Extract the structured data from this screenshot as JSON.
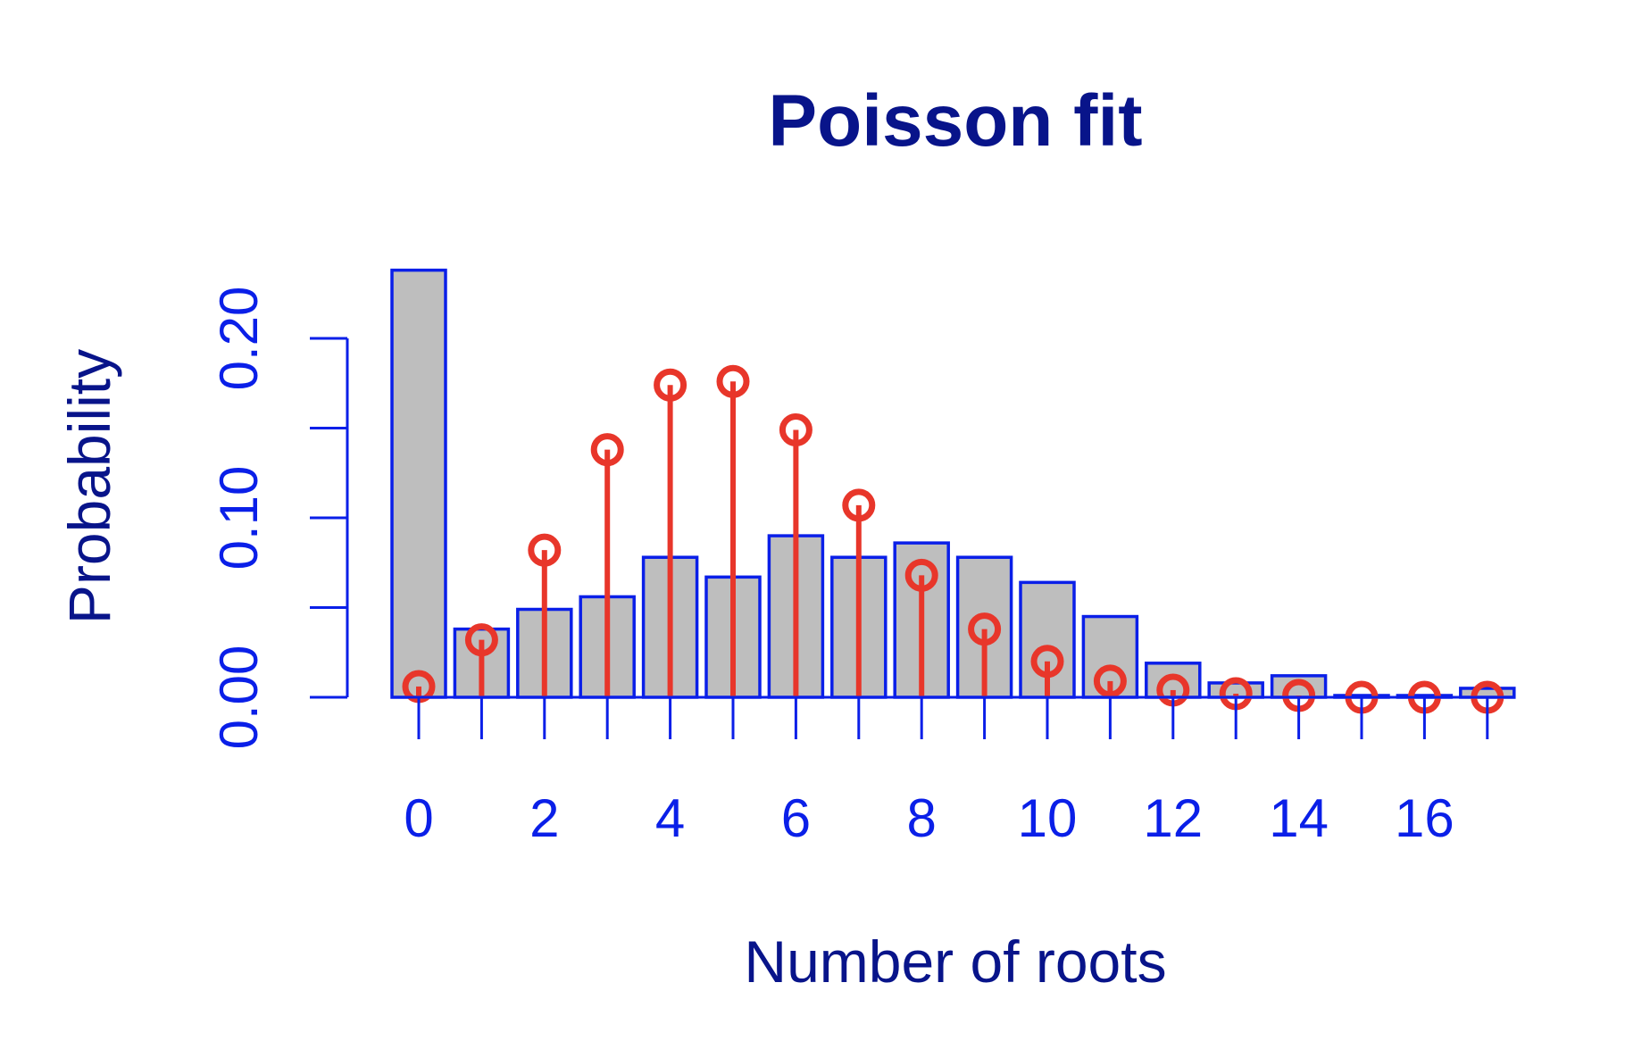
{
  "chart_data": {
    "type": "bar",
    "title": "Poisson fit",
    "xlabel": "Number of roots",
    "ylabel": "Probability",
    "x": [
      0,
      1,
      2,
      3,
      4,
      5,
      6,
      7,
      8,
      9,
      10,
      11,
      12,
      13,
      14,
      15,
      16,
      17
    ],
    "xticks": [
      "0",
      "2",
      "4",
      "6",
      "8",
      "10",
      "12",
      "14",
      "16"
    ],
    "xtick_values": [
      0,
      2,
      4,
      6,
      8,
      10,
      12,
      14,
      16
    ],
    "yticks": [
      "0.00",
      "0.10",
      "0.20"
    ],
    "ytick_values": [
      0.0,
      0.05,
      0.1,
      0.15,
      0.2
    ],
    "ylim": [
      0,
      0.2
    ],
    "series": [
      {
        "type": "bar",
        "values": [
          0.238,
          0.038,
          0.049,
          0.056,
          0.078,
          0.067,
          0.09,
          0.078,
          0.086,
          0.078,
          0.064,
          0.045,
          0.019,
          0.008,
          0.012,
          0.001,
          0.001,
          0.005
        ]
      },
      {
        "type": "lollipop",
        "values": [
          0.006,
          0.032,
          0.082,
          0.138,
          0.174,
          0.176,
          0.149,
          0.107,
          0.068,
          0.038,
          0.02,
          0.009,
          0.004,
          0.002,
          0.001,
          0.0,
          0.0,
          0.0
        ]
      }
    ],
    "colors": {
      "bar_fill": "#bebebe",
      "bar_stroke": "#0a1fe8",
      "lollipop": "#e8362a",
      "axis": "#0a1fe8",
      "tick_label": "#0a1fe8",
      "title": "#08148a",
      "axis_title": "#08148a"
    }
  }
}
